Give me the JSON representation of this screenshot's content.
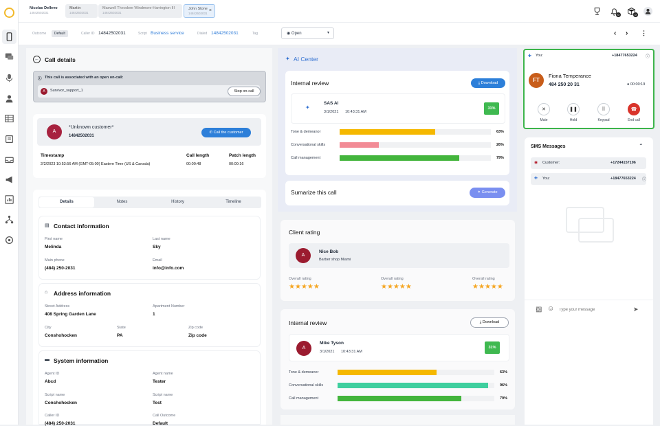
{
  "sidebar": {
    "nav_icons": [
      "phone-icon",
      "chat-icon",
      "microphone-icon",
      "user-icon",
      "table-icon",
      "document-icon",
      "inbox-icon",
      "megaphone-icon",
      "chart-icon",
      "network-icon",
      "settings-icon"
    ]
  },
  "topbar": {
    "tabs": [
      {
        "title": "Nicolas Dellevo",
        "sub": "14842502031"
      },
      {
        "title": "Martin",
        "sub": "14842502031"
      },
      {
        "title": "Maxwell Theodore Windmore-Harrington III",
        "sub": "14842502031"
      },
      {
        "title": "John Stone",
        "sub": "14842502031",
        "close": "×"
      }
    ],
    "icons": [
      "trophy-icon",
      "bell-icon",
      "package-icon",
      "profile-icon"
    ],
    "badges": [
      "0",
      "0"
    ]
  },
  "subbar": {
    "outcome_label": "Outcome",
    "outcome_value": "Default",
    "caller_id_label": "Caller ID",
    "caller_id_value": "14842502031",
    "script_label": "Script",
    "script_value": "Business service",
    "dialed_label": "Dialed",
    "dialed_value": "14842502031",
    "tag_label": "Tag",
    "tag_value": "Open"
  },
  "call_details": {
    "title": "Call details",
    "notice": "This call is associated with an open on-call:",
    "agent_initial": "A",
    "agent_name": "Survivor_support_1",
    "stop_button": "Stop on-call",
    "customer_initial": "A",
    "customer_name": "*Unknown customer*",
    "customer_phone": "14842502031",
    "call_button": "Call the customer",
    "timestamp_label": "Timestamp",
    "timestamp_value": "2/2/2023 10:53:56 AM (GMT-05:00) Eastern Time (US & Canada)",
    "call_length_label": "Call length",
    "call_length_value": "00:00:48",
    "patch_length_label": "Patch length",
    "patch_length_value": "00:00:16"
  },
  "details_tabs": [
    "Details",
    "Notes",
    "History",
    "Timeline"
  ],
  "contact": {
    "title": "Contact information",
    "first_name_label": "First name",
    "first_name": "Melinda",
    "last_name_label": "Last name",
    "last_name": "Sky",
    "phone_label": "Main phone",
    "phone": "(484) 250-2031",
    "email_label": "Email",
    "email": "info@info.com"
  },
  "address": {
    "title": "Address information",
    "street_label": "Street Address",
    "street": "408 Spring Garden Lane",
    "apt_label": "Apartment Number",
    "apt": "1",
    "city_label": "City",
    "city": "Conshohocken",
    "state_label": "State",
    "state": "PA",
    "zip_label": "Zip code",
    "zip": "Zip code"
  },
  "system": {
    "title": "System information",
    "agent_id_label": "Agent ID",
    "agent_id": "Abcd",
    "agent_name_label": "Agent name",
    "agent_name": "Tester",
    "script_label": "Script name",
    "script": "Conshohocken",
    "script_name_label": "Script name",
    "script_name": "Test",
    "caller_id_label": "Caller ID",
    "caller_id": "(484) 250-2031",
    "outcome_label": "Call Outcome",
    "outcome": "Default"
  },
  "ai_center": {
    "title": "AI Center",
    "review_title": "Internal review",
    "download": "Download",
    "reviewer": "SAS AI",
    "date": "3/1/2021",
    "time": "10:43:31 AM",
    "score": "31%",
    "metrics": [
      {
        "label": "Tone & demeanor",
        "value": 63,
        "text": "63%",
        "color": "#f5b800"
      },
      {
        "label": "Conversational skills",
        "value": 26,
        "text": "26%",
        "color": "#f28b96"
      },
      {
        "label": "Call management",
        "value": 79,
        "text": "79%",
        "color": "#43b53c"
      }
    ],
    "summarize_title": "Sumarize this call",
    "generate": "Generate"
  },
  "client_rating": {
    "title": "Client rating",
    "initial": "A",
    "name": "Nice Bob",
    "subtitle": "Barber shop Miami",
    "ratings": [
      {
        "label": "Overall rating",
        "stars": 5
      },
      {
        "label": "Overall rating",
        "stars": 5
      },
      {
        "label": "Overall rating",
        "stars": 5
      }
    ]
  },
  "internal_review2": {
    "title": "Internal review",
    "download": "Download",
    "initial": "A",
    "name": "Mike Tyson",
    "date": "3/1/2021",
    "time": "10:43:31 AM",
    "score": "31%",
    "metrics": [
      {
        "label": "Tone & demeanor",
        "value": 63,
        "text": "63%",
        "color": "#f5b800"
      },
      {
        "label": "Conversational skills",
        "value": 96,
        "text": "96%",
        "color": "#3ecf9e"
      },
      {
        "label": "Call management",
        "value": 79,
        "text": "79%",
        "color": "#43b53c"
      }
    ]
  },
  "active_call": {
    "you_label": "You:",
    "you_number": "+18477653224",
    "initials": "FT",
    "name": "Fiona Temperance",
    "number": "484 250 20 31",
    "timer": "00:00:19",
    "controls": [
      "Mute",
      "Hold",
      "Keypad",
      "End call"
    ]
  },
  "sms": {
    "title": "SMS Messages",
    "rows": [
      {
        "label": "Customer:",
        "number": "+17244157196"
      },
      {
        "label": "You:",
        "number": "+18477653224"
      }
    ],
    "placeholder": "Type your message"
  }
}
